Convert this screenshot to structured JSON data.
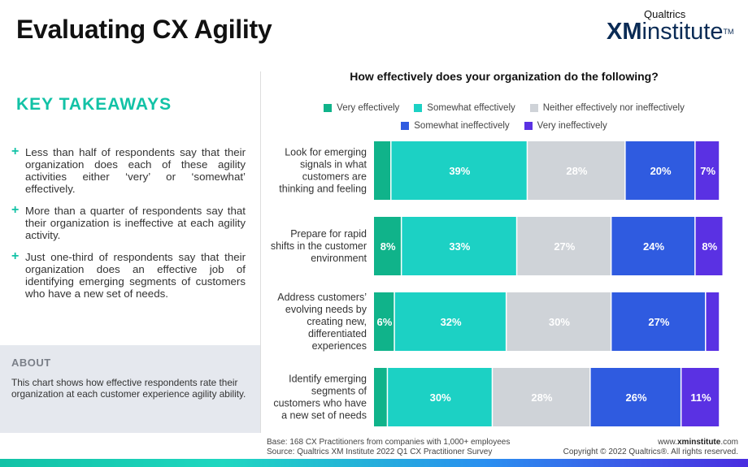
{
  "header": {
    "title": "Evaluating CX Agility",
    "logo_top": "Qualtrics",
    "logo_xm": "XM",
    "logo_institute": "institute",
    "logo_tm": "TM"
  },
  "takeaways": {
    "title": "KEY TAKEAWAYS",
    "plus": "+",
    "items": [
      "Less than half of respondents say that their organization does each of these agility activities either ‘very’ or ‘somewhat’ effectively.",
      "More than a quarter of respondents say that their organization is ineffective at each agility activity.",
      "Just one-third of respondents say that their organization does an effective job of identifying emerging segments of customers who have a new set of needs."
    ]
  },
  "about": {
    "title": "ABOUT",
    "text": "This chart shows how effective respondents rate their organization at each customer experience agility ability."
  },
  "colors": {
    "very_effectively": "#10b38a",
    "somewhat_effectively": "#1cd1c4",
    "neither": "#cfd3d8",
    "somewhat_ineffectively": "#2f5be0",
    "very_ineffectively": "#5a31e3"
  },
  "chart_data": {
    "type": "bar",
    "orientation": "horizontal",
    "stacked": true,
    "title": "How effectively does your organization do the following?",
    "categories": [
      [
        "Look for emerging",
        "signals in what",
        "customers are",
        "thinking and feeling"
      ],
      [
        "Prepare for rapid",
        "shifts in the customer",
        "environment"
      ],
      [
        "Address customers’",
        "evolving needs by",
        "creating new,",
        "differentiated",
        "experiences"
      ],
      [
        "Identify emerging",
        "segments of",
        "customers who have",
        "a new set of needs"
      ]
    ],
    "series": [
      {
        "name": "Very effectively",
        "values": [
          5,
          8,
          6,
          4
        ],
        "labels": [
          "",
          "8%",
          "6%",
          ""
        ]
      },
      {
        "name": "Somewhat effectively",
        "values": [
          39,
          33,
          32,
          30
        ],
        "labels": [
          "39%",
          "33%",
          "32%",
          "30%"
        ]
      },
      {
        "name": "Neither effectively nor ineffectively",
        "values": [
          28,
          27,
          30,
          28
        ],
        "labels": [
          "28%",
          "27%",
          "30%",
          "28%"
        ]
      },
      {
        "name": "Somewhat ineffectively",
        "values": [
          20,
          24,
          27,
          26
        ],
        "labels": [
          "20%",
          "24%",
          "27%",
          "26%"
        ]
      },
      {
        "name": "Very ineffectively",
        "values": [
          7,
          8,
          4,
          11
        ],
        "labels": [
          "7%",
          "8%",
          "",
          "11%"
        ]
      }
    ],
    "legend_rows": [
      [
        0,
        1,
        2
      ],
      [
        3,
        4
      ]
    ],
    "xlim": [
      0,
      100
    ],
    "legend_position": "top"
  },
  "footer": {
    "base": "Base: 168 CX Practitioners from companies with 1,000+ employees",
    "source": "Source: Qualtrics XM Institute 2022 Q1 CX Practitioner Survey",
    "url_prefix": "www.",
    "url_main": "xminstitute",
    "url_suffix": ".com",
    "copyright": "Copyright © 2022 Qualtrics®. All rights reserved."
  }
}
